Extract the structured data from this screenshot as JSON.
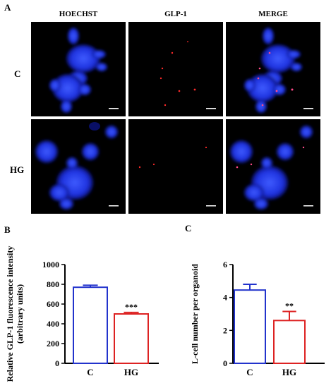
{
  "panels": {
    "a": {
      "label": "A"
    },
    "b": {
      "label": "B"
    },
    "c": {
      "label": "C"
    }
  },
  "microscopy": {
    "columns": [
      "HOECHST",
      "GLP-1",
      "MERGE"
    ],
    "rows": [
      "C",
      "HG"
    ]
  },
  "colors": {
    "control": "#2233cc",
    "hg": "#dd2222",
    "hoechst_blue": "#2440ff",
    "glp1_red": "#ff2a2a"
  },
  "chart_data": [
    {
      "type": "bar",
      "categories": [
        "C",
        "HG"
      ],
      "values": [
        770,
        500
      ],
      "errors": [
        20,
        15
      ],
      "significance": [
        "",
        "***"
      ],
      "ylabel_lines": [
        "Relative GLP-1 fluorescence intensity",
        "(arbitrary units)"
      ],
      "ylim": [
        0,
        1000
      ],
      "yticks": [
        0,
        200,
        400,
        600,
        800,
        1000
      ],
      "bar_colors": [
        "#2233cc",
        "#dd2222"
      ],
      "grid": false
    },
    {
      "type": "bar",
      "categories": [
        "C",
        "HG"
      ],
      "values": [
        4.45,
        2.6
      ],
      "errors": [
        0.35,
        0.55
      ],
      "significance": [
        "",
        "**"
      ],
      "ylabel_lines": [
        "L-cell number per organoid"
      ],
      "ylim": [
        0,
        6
      ],
      "yticks": [
        0,
        2,
        4,
        6
      ],
      "bar_colors": [
        "#2233cc",
        "#dd2222"
      ],
      "grid": false
    }
  ]
}
